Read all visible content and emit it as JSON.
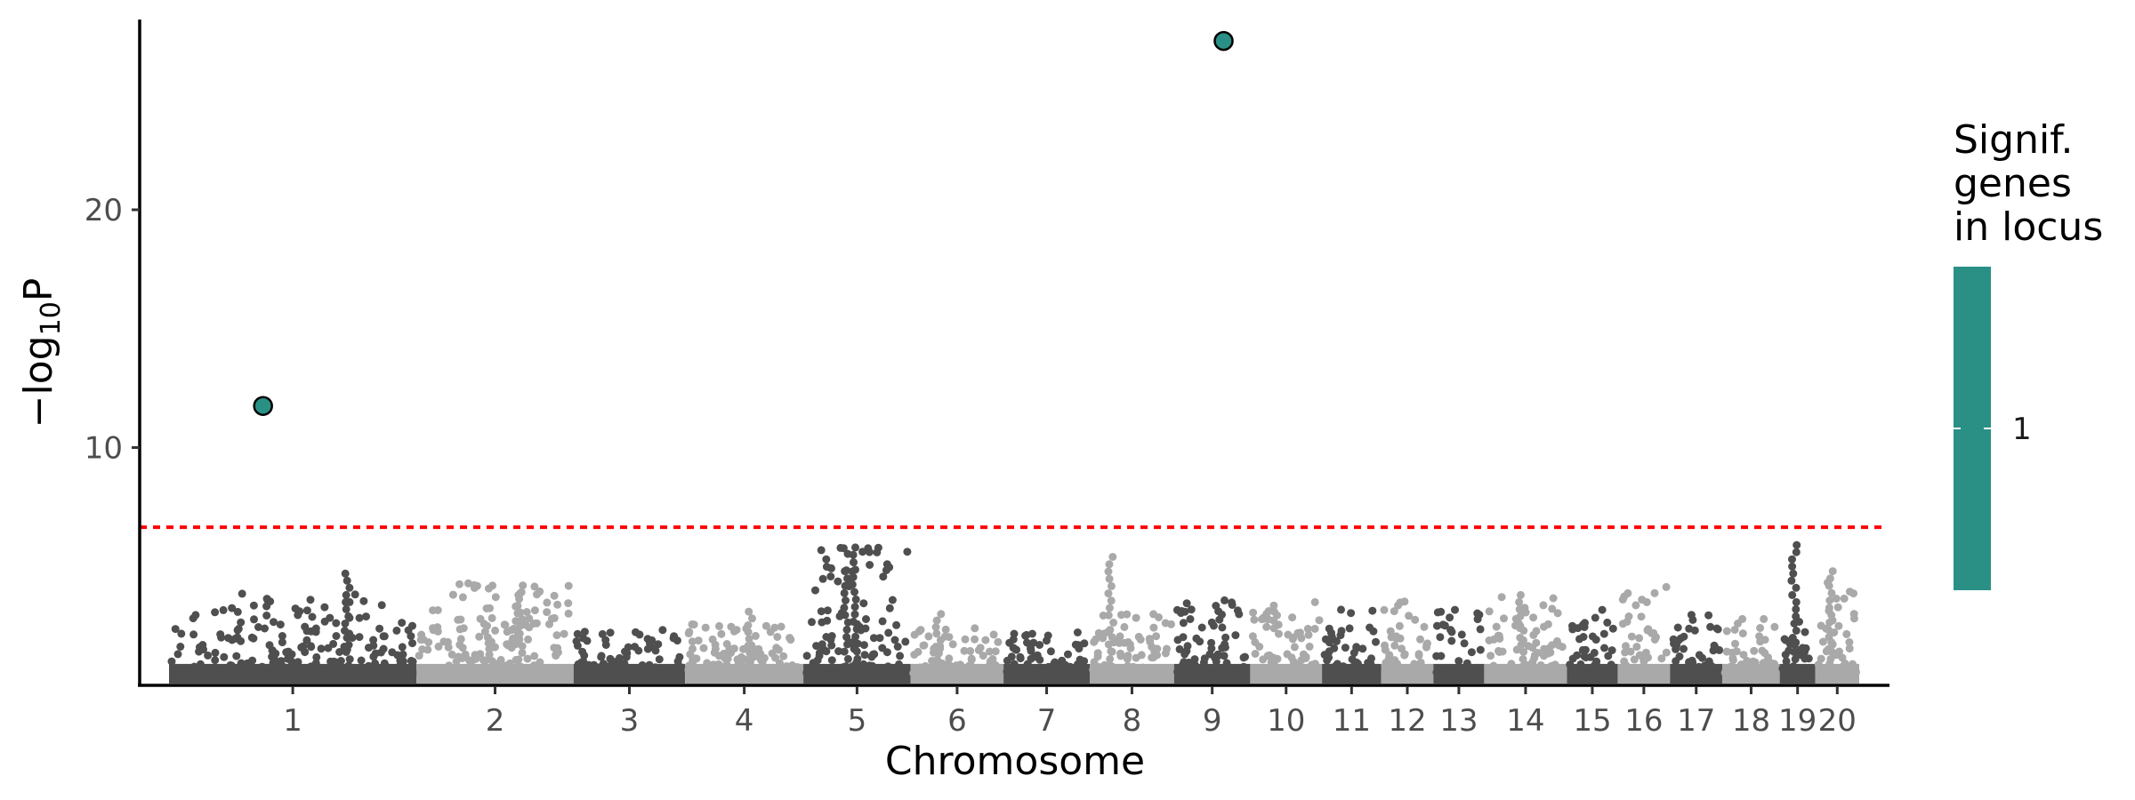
{
  "chart_data": {
    "type": "scatter",
    "subtype": "manhattan",
    "xlabel": "Chromosome",
    "ylabel": "−log10P",
    "ylabel_base": "−log",
    "ylabel_sub": "10",
    "ylabel_tail": "P",
    "ylim": [
      0,
      28
    ],
    "yticks": [
      10,
      20
    ],
    "significance_threshold": 6.65,
    "threshold_color": "#ff0000",
    "colors": {
      "dark": "#4f4f4f",
      "light": "#a9a9a9",
      "highlight": "#2a9086"
    },
    "chromosomes": [
      {
        "label": "1",
        "length": 2.93,
        "max": 3.9,
        "peaks": [
          [
            0.72,
            4.7
          ]
        ]
      },
      {
        "label": "2",
        "length": 1.86,
        "max": 4.3,
        "peaks": [
          [
            0.66,
            4.2
          ],
          [
            0.45,
            2.5
          ]
        ]
      },
      {
        "label": "3",
        "length": 1.32,
        "max": 2.4,
        "peaks": []
      },
      {
        "label": "4",
        "length": 1.4,
        "max": 2.6,
        "peaks": [
          [
            0.55,
            3.1
          ]
        ]
      },
      {
        "label": "5",
        "length": 1.27,
        "max": 5.8,
        "peaks": [
          [
            0.48,
            5.8
          ],
          [
            0.4,
            4.8
          ]
        ]
      },
      {
        "label": "6",
        "length": 1.1,
        "max": 2.4,
        "peaks": [
          [
            0.3,
            3.0
          ]
        ]
      },
      {
        "label": "7",
        "length": 1.02,
        "max": 2.3,
        "peaks": []
      },
      {
        "label": "8",
        "length": 1.0,
        "max": 3.2,
        "peaks": [
          [
            0.25,
            5.4
          ]
        ]
      },
      {
        "label": "9",
        "length": 0.9,
        "max": 3.6,
        "peaks": []
      },
      {
        "label": "10",
        "length": 0.85,
        "max": 3.6,
        "peaks": []
      },
      {
        "label": "11",
        "length": 0.7,
        "max": 3.4,
        "peaks": []
      },
      {
        "label": "12",
        "length": 0.62,
        "max": 3.6,
        "peaks": []
      },
      {
        "label": "13",
        "length": 0.6,
        "max": 3.4,
        "peaks": []
      },
      {
        "label": "14",
        "length": 0.98,
        "max": 3.8,
        "peaks": [
          [
            0.45,
            3.8
          ]
        ]
      },
      {
        "label": "15",
        "length": 0.6,
        "max": 3.2,
        "peaks": []
      },
      {
        "label": "16",
        "length": 0.62,
        "max": 4.2,
        "peaks": []
      },
      {
        "label": "17",
        "length": 0.62,
        "max": 3.0,
        "peaks": []
      },
      {
        "label": "18",
        "length": 0.68,
        "max": 2.8,
        "peaks": []
      },
      {
        "label": "19",
        "length": 0.42,
        "max": 2.9,
        "peaks": [
          [
            0.4,
            5.9
          ]
        ]
      },
      {
        "label": "20",
        "length": 0.52,
        "max": 4.8,
        "peaks": [
          [
            0.35,
            4.8
          ]
        ]
      }
    ],
    "highlighted_points": [
      {
        "chromosome": "1",
        "position": 0.38,
        "value": 11.75
      },
      {
        "chromosome": "9",
        "position": 0.65,
        "value": 27.1
      }
    ],
    "legend": {
      "title_lines": [
        "Signif.",
        "genes",
        "in locus"
      ],
      "entries": [
        {
          "label": "1",
          "color": "#2a9086"
        }
      ]
    }
  }
}
